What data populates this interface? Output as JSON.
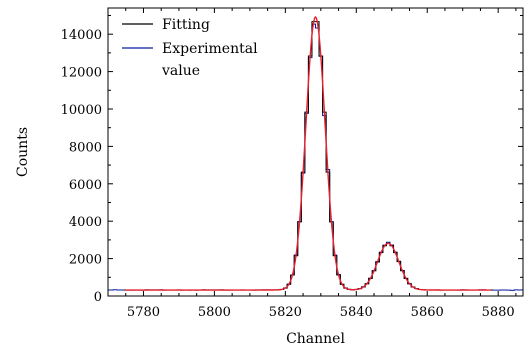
{
  "chart_data": {
    "type": "line",
    "title": "",
    "xlabel": "Channel",
    "ylabel": "Counts",
    "xlim": [
      5770,
      5887
    ],
    "ylim": [
      0,
      15400
    ],
    "xticks": [
      5780,
      5800,
      5820,
      5840,
      5860,
      5880
    ],
    "yticks": [
      0,
      2000,
      4000,
      6000,
      8000,
      10000,
      12000,
      14000
    ],
    "grid": false,
    "legend_position": "top-left",
    "legend": [
      {
        "label": "Fitting",
        "color": "#000000"
      },
      {
        "label": "Experimental",
        "label_line2": "value",
        "color": "#0a1aa0"
      }
    ],
    "fit_color": "#e8202a",
    "background_level": 320,
    "peaks": [
      {
        "center": 5828.5,
        "amplitude": 14600,
        "sigma": 2.7
      },
      {
        "center": 5849.0,
        "amplitude": 2500,
        "sigma": 3.0
      }
    ],
    "series": [
      {
        "name": "Experimental value",
        "style": "step",
        "color": "#0a1aa0",
        "x_start": 5770,
        "x_end": 5887
      },
      {
        "name": "Fitting",
        "style": "step",
        "color": "#000000",
        "x_start": 5775,
        "x_end": 5878
      },
      {
        "name": "",
        "style": "smooth",
        "color": "#e8202a",
        "x_start": 5775,
        "x_end": 5878
      }
    ]
  }
}
